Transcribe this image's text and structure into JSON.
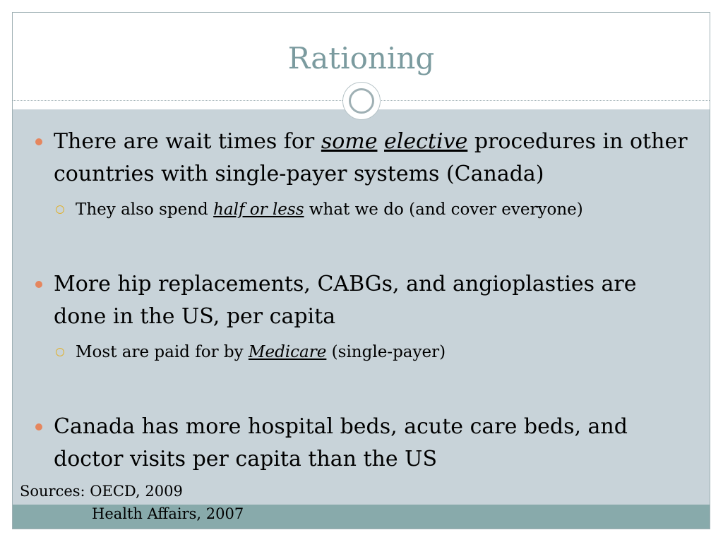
{
  "title": "Rationing",
  "bullets": [
    {
      "parts": [
        "There are wait times for ",
        "some",
        " ",
        "elective",
        " procedures in other countries with single-payer systems (Canada)"
      ],
      "sub": {
        "parts": [
          "They also spend ",
          "half or less",
          " what we do (and cover everyone)"
        ]
      }
    },
    {
      "parts": [
        "More hip replacements, CABGs, and angioplasties are done in the US, per capita"
      ],
      "sub": {
        "parts": [
          "Most are paid for by ",
          "Medicare",
          " (single-payer)"
        ]
      }
    },
    {
      "parts": [
        "Canada has more hospital beds, acute care beds, and doctor visits per capita than the US"
      ]
    }
  ],
  "sources": {
    "line1": "Sources: OECD, 2009",
    "line2": "Health Affairs, 2007"
  },
  "colors": {
    "title": "#7b9b9f",
    "body_bg": "#c8d3d9",
    "footer_band": "#88aaab",
    "bullet": "#e5865e",
    "sub_bullet": "#e0b12f"
  }
}
